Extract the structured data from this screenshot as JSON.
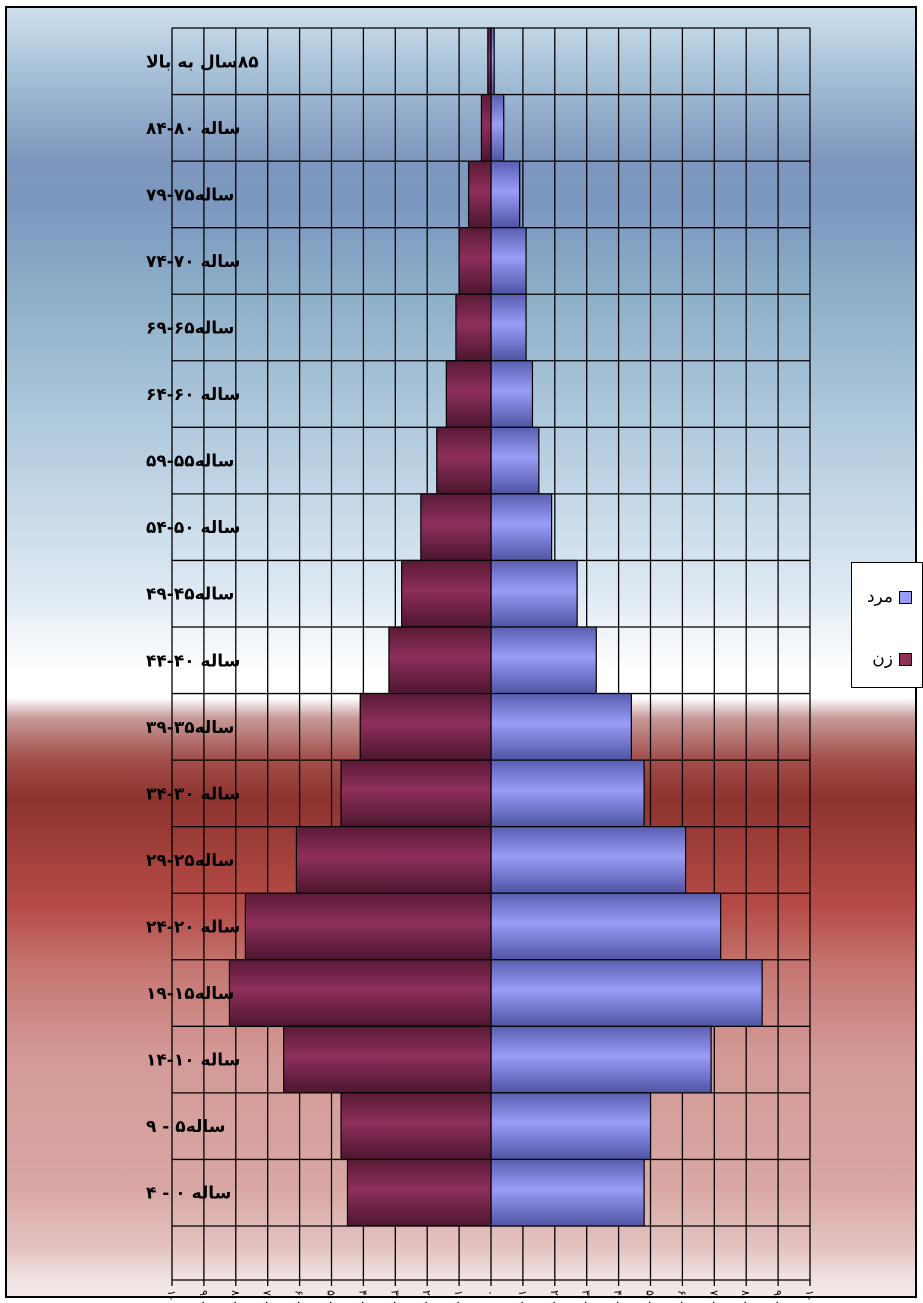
{
  "chart_data": {
    "type": "bar",
    "orientation": "horizontal",
    "categories": [
      "۸۵سال به بالا",
      "ساله ۸۰-۸۴",
      "ساله۷۵-۷۹",
      "ساله ۷۰-۷۴",
      "ساله۶۵-۶۹",
      "ساله ۶۰-۶۴",
      "ساله۵۵-۵۹",
      "ساله ۵۰-۵۴",
      "ساله۴۵-۴۹",
      "ساله ۴۰-۴۴",
      "ساله۳۵-۳۹",
      "ساله ۳۰-۳۴",
      "ساله۲۵-۲۹",
      "ساله ۲۰-۲۴",
      "ساله۱۵-۱۹",
      "ساله ۱۰-۱۴",
      "ساله۵ - ۹",
      "ساله ۰ - ۴"
    ],
    "series": [
      {
        "name": "مرد",
        "color": "#9a9cf6",
        "values": [
          0.1,
          0.4,
          0.9,
          1.1,
          1.1,
          1.3,
          1.5,
          1.9,
          2.7,
          3.3,
          4.4,
          4.8,
          6.1,
          7.2,
          8.5,
          6.9,
          5.0,
          4.8
        ]
      },
      {
        "name": "زن",
        "color": "#8e2f5a",
        "values": [
          -0.1,
          -0.3,
          -0.7,
          -1.0,
          -1.1,
          -1.4,
          -1.7,
          -2.2,
          -2.8,
          -3.2,
          -4.1,
          -4.7,
          -6.1,
          -7.7,
          -8.2,
          -6.5,
          -4.7,
          -4.5
        ]
      }
    ],
    "xlim": [
      -10,
      10
    ],
    "tick_labels": [
      "۱۰.۰۰٫",
      "۹.۰۰٫",
      "۸.۰۰٫",
      "۷.۰۰٫",
      "۶.۰۰٫",
      "۵.۰۰٫",
      "۴.۰۰٫",
      "۳.۰۰٫",
      "۲.۰۰٫",
      "۱.۰۰٫",
      "۰",
      "۱.۰۰٫",
      "۲.۰۰٫",
      "۳.۰۰٫",
      "۴.۰۰٫",
      "۵.۰۰٫",
      "۶.۰۰٫",
      "۷.۰۰٫",
      "۸.۰۰٫",
      "۹.۰۰٫",
      "۱۰.۰۰٫"
    ],
    "grid": true,
    "legend_position": "right"
  }
}
